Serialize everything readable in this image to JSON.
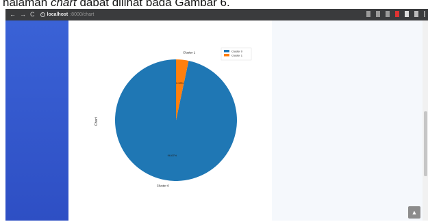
{
  "caption": {
    "before": "halaman ",
    "italic": "chart",
    "after": " dapat dilihat pada Gambar 6."
  },
  "browser": {
    "back": "←",
    "forward": "→",
    "reload": "C",
    "host": "localhost",
    "path": ":8000/chart"
  },
  "colors": {
    "sidebar": "#3a62d6",
    "cluster0": "#1f77b4",
    "cluster1": "#ff7f0e"
  },
  "chart_data": {
    "type": "pie",
    "ylabel": "Chart",
    "labels": [
      "Cluster 0",
      "Cluster 1"
    ],
    "values": [
      96.67,
      3.33
    ],
    "pct_labels": [
      "96.67%",
      "3.33%"
    ],
    "legend": [
      "Cluster 0",
      "Cluster 1"
    ],
    "legend_position": "top-right",
    "startangle": 90
  },
  "scroll_top_icon": "chevron-up-icon"
}
